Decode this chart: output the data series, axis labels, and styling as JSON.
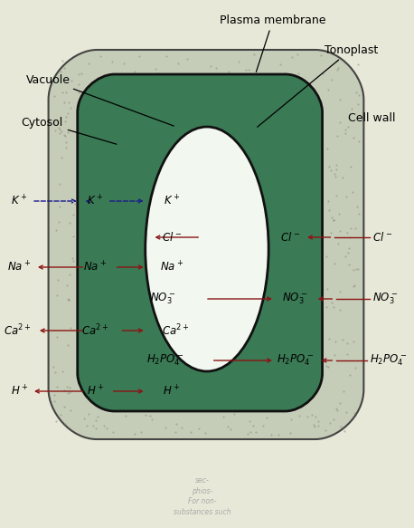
{
  "bg_color": "#e8e8d8",
  "cell_wall_color": "#c8cfc0",
  "cytosol_color": "#3a7a55",
  "vacuole_color": "#f0f5ee",
  "plasma_mem_edge": "#111111",
  "arrow_red": "#8b1414",
  "arrow_blue": "#1a1a8b",
  "text_color": "#111111",
  "labels": {
    "plasma_membrane": "Plasma membrane",
    "tonoplast": "Tonoplast",
    "cell_wall": "Cell wall",
    "vacuole": "Vacuole",
    "cytosol": "Cytosol"
  },
  "ion_fs": 8.5,
  "label_fs": 9.0
}
